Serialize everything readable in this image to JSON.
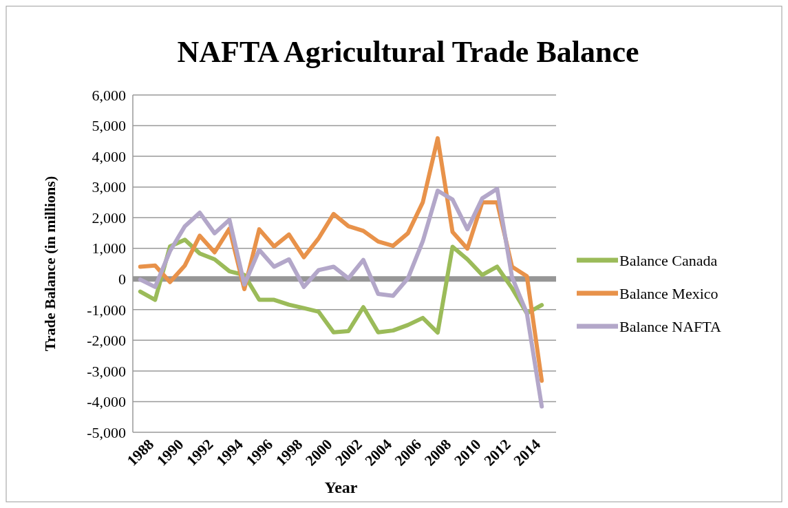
{
  "chart_data": {
    "type": "line",
    "title": "NAFTA Agricultural Trade Balance",
    "xlabel": "Year",
    "ylabel": "Trade Balance (in millions)",
    "categories": [
      "1988",
      null,
      "1990",
      null,
      "1992",
      null,
      "1994",
      null,
      "1996",
      null,
      "1998",
      null,
      "2000",
      null,
      "2002",
      null,
      "2004",
      null,
      "2006",
      null,
      "2008",
      null,
      "2010",
      null,
      "2012",
      null,
      "2014",
      null
    ],
    "series": [
      {
        "name": "Balance Canada",
        "color": "#9bbb59",
        "values": [
          -410,
          -680,
          1060,
          1280,
          830,
          640,
          250,
          130,
          -680,
          -680,
          -840,
          -950,
          -1070,
          -1740,
          -1700,
          -920,
          -1740,
          -1680,
          -1500,
          -1270,
          -1750,
          1050,
          640,
          130,
          400,
          -300,
          -1120,
          -850
        ]
      },
      {
        "name": "Balance Mexico",
        "color": "#e8924a",
        "values": [
          400,
          440,
          -100,
          440,
          1410,
          870,
          1640,
          -330,
          1620,
          1060,
          1450,
          710,
          1330,
          2120,
          1720,
          1570,
          1220,
          1080,
          1490,
          2500,
          4590,
          1530,
          990,
          2500,
          2500,
          400,
          90,
          -3320
        ]
      },
      {
        "name": "Balance NAFTA",
        "color": "#b3a7c9",
        "values": [
          -20,
          -260,
          910,
          1720,
          2160,
          1490,
          1930,
          -180,
          950,
          400,
          640,
          -260,
          290,
          400,
          20,
          620,
          -490,
          -550,
          20,
          1230,
          2880,
          2590,
          1620,
          2630,
          2940,
          60,
          -1120,
          -4160
        ]
      }
    ],
    "ylim": [
      -5000,
      6000
    ],
    "yticks": [
      {
        "value": -5000,
        "label": "-5,000"
      },
      {
        "value": -4000,
        "label": "-4,000"
      },
      {
        "value": -3000,
        "label": "-3,000"
      },
      {
        "value": -2000,
        "label": "-2,000"
      },
      {
        "value": -1000,
        "label": "-1,000"
      },
      0,
      {
        "value": 1000,
        "label": "1,000"
      },
      {
        "value": 2000,
        "label": "2,000"
      },
      {
        "value": 3000,
        "label": "3,000"
      },
      {
        "value": 4000,
        "label": "4,000"
      },
      {
        "value": 5000,
        "label": "5,000"
      },
      {
        "value": 6000,
        "label": "6,000"
      }
    ],
    "grid": "y",
    "legend": "right",
    "marker": "none",
    "line_style": "solid"
  }
}
